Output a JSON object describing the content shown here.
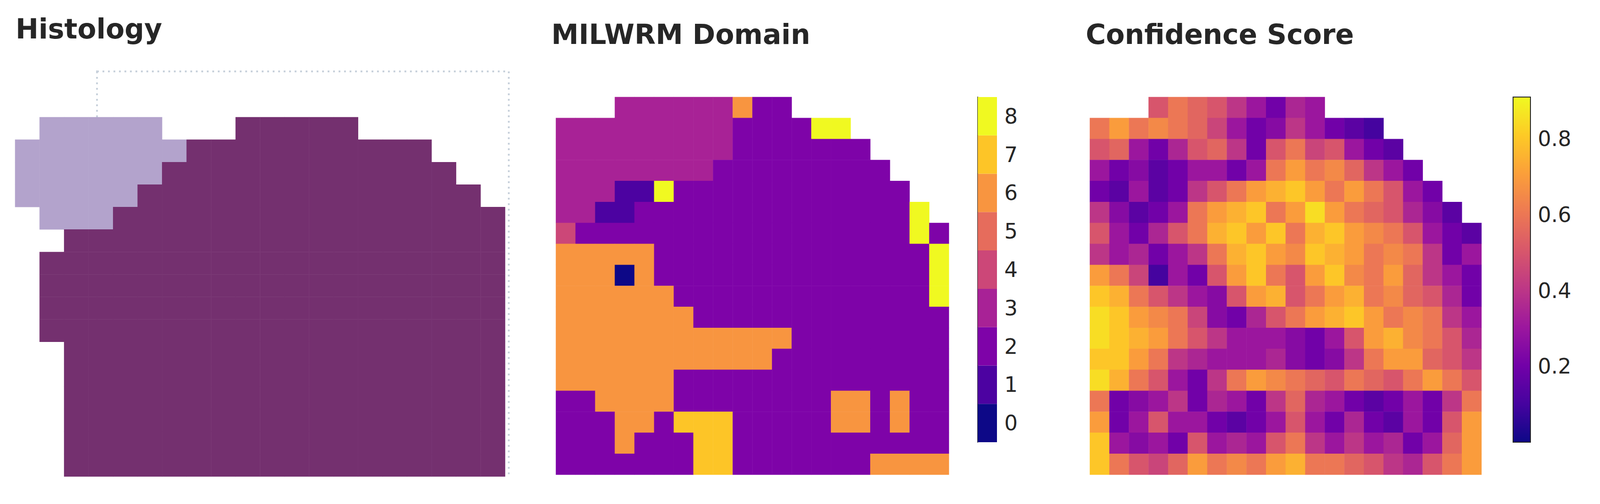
{
  "chart_data": [
    {
      "type": "image",
      "title": "Histology",
      "levels": [
        1,
        2
      ],
      "colors": [
        "#74306f",
        "#b3a3cc"
      ],
      "cells": [
        [
          null,
          2,
          2,
          2,
          2,
          2,
          null,
          null,
          null,
          1,
          1,
          1,
          1,
          1,
          null,
          null,
          null,
          null,
          null,
          null
        ],
        [
          2,
          2,
          2,
          2,
          2,
          2,
          2,
          1,
          1,
          1,
          1,
          1,
          1,
          1,
          1,
          1,
          1,
          null,
          null,
          null
        ],
        [
          2,
          2,
          2,
          2,
          2,
          2,
          1,
          1,
          1,
          1,
          1,
          1,
          1,
          1,
          1,
          1,
          1,
          1,
          null,
          null
        ],
        [
          2,
          2,
          2,
          2,
          2,
          1,
          1,
          1,
          1,
          1,
          1,
          1,
          1,
          1,
          1,
          1,
          1,
          1,
          1,
          null
        ],
        [
          null,
          2,
          2,
          2,
          1,
          1,
          1,
          1,
          1,
          1,
          1,
          1,
          1,
          1,
          1,
          1,
          1,
          1,
          1,
          1
        ],
        [
          null,
          null,
          1,
          1,
          1,
          1,
          1,
          1,
          1,
          1,
          1,
          1,
          1,
          1,
          1,
          1,
          1,
          1,
          1,
          1
        ],
        [
          null,
          1,
          1,
          1,
          1,
          1,
          1,
          1,
          1,
          1,
          1,
          1,
          1,
          1,
          1,
          1,
          1,
          1,
          1,
          1
        ],
        [
          null,
          1,
          1,
          1,
          1,
          1,
          1,
          1,
          1,
          1,
          1,
          1,
          1,
          1,
          1,
          1,
          1,
          1,
          1,
          1
        ],
        [
          null,
          1,
          1,
          1,
          1,
          1,
          1,
          1,
          1,
          1,
          1,
          1,
          1,
          1,
          1,
          1,
          1,
          1,
          1,
          1
        ],
        [
          null,
          1,
          1,
          1,
          1,
          1,
          1,
          1,
          1,
          1,
          1,
          1,
          1,
          1,
          1,
          1,
          1,
          1,
          1,
          1
        ],
        [
          null,
          null,
          1,
          1,
          1,
          1,
          1,
          1,
          1,
          1,
          1,
          1,
          1,
          1,
          1,
          1,
          1,
          1,
          1,
          1
        ],
        [
          null,
          null,
          1,
          1,
          1,
          1,
          1,
          1,
          1,
          1,
          1,
          1,
          1,
          1,
          1,
          1,
          1,
          1,
          1,
          1
        ],
        [
          null,
          null,
          1,
          1,
          1,
          1,
          1,
          1,
          1,
          1,
          1,
          1,
          1,
          1,
          1,
          1,
          1,
          1,
          1,
          1
        ],
        [
          null,
          null,
          1,
          1,
          1,
          1,
          1,
          1,
          1,
          1,
          1,
          1,
          1,
          1,
          1,
          1,
          1,
          1,
          1,
          1
        ],
        [
          null,
          null,
          1,
          1,
          1,
          1,
          1,
          1,
          1,
          1,
          1,
          1,
          1,
          1,
          1,
          1,
          1,
          1,
          1,
          1
        ],
        [
          null,
          null,
          1,
          1,
          1,
          1,
          1,
          1,
          1,
          1,
          1,
          1,
          1,
          1,
          1,
          1,
          1,
          1,
          1,
          1
        ]
      ]
    },
    {
      "type": "heatmap",
      "title": "MILWRM Domain",
      "colors": [
        "#0d0887",
        "#4c02a1",
        "#7e03a8",
        "#a82296",
        "#cc4778",
        "#e66c5c",
        "#f89540",
        "#fdc527",
        "#f0f921"
      ],
      "colorbar_range": [
        -0.5,
        8.5
      ],
      "colorbar_ticks": [
        0,
        1,
        2,
        3,
        4,
        5,
        6,
        7,
        8
      ],
      "cells": [
        [
          null,
          null,
          null,
          3,
          3,
          3,
          3,
          3,
          3,
          6,
          2,
          2,
          null,
          null,
          null,
          null,
          null,
          null,
          null,
          null
        ],
        [
          3,
          3,
          3,
          3,
          3,
          3,
          3,
          3,
          3,
          2,
          2,
          2,
          2,
          8,
          8,
          null,
          null,
          null,
          null,
          null
        ],
        [
          3,
          3,
          3,
          3,
          3,
          3,
          3,
          3,
          3,
          2,
          2,
          2,
          2,
          2,
          2,
          2,
          null,
          null,
          null,
          null
        ],
        [
          3,
          3,
          3,
          3,
          3,
          3,
          3,
          3,
          2,
          2,
          2,
          2,
          2,
          2,
          2,
          2,
          2,
          null,
          null,
          null
        ],
        [
          3,
          3,
          3,
          1,
          1,
          8,
          2,
          2,
          2,
          2,
          2,
          2,
          2,
          2,
          2,
          2,
          2,
          2,
          null,
          null
        ],
        [
          3,
          3,
          1,
          1,
          2,
          2,
          2,
          2,
          2,
          2,
          2,
          2,
          2,
          2,
          2,
          2,
          2,
          2,
          8,
          null
        ],
        [
          4,
          2,
          2,
          2,
          2,
          2,
          2,
          2,
          2,
          2,
          2,
          2,
          2,
          2,
          2,
          2,
          2,
          2,
          8,
          2
        ],
        [
          6,
          6,
          6,
          6,
          6,
          2,
          2,
          2,
          2,
          2,
          2,
          2,
          2,
          2,
          2,
          2,
          2,
          2,
          2,
          8
        ],
        [
          6,
          6,
          6,
          0,
          6,
          2,
          2,
          2,
          2,
          2,
          2,
          2,
          2,
          2,
          2,
          2,
          2,
          2,
          2,
          8
        ],
        [
          6,
          6,
          6,
          6,
          6,
          6,
          2,
          2,
          2,
          2,
          2,
          2,
          2,
          2,
          2,
          2,
          2,
          2,
          2,
          8
        ],
        [
          6,
          6,
          6,
          6,
          6,
          6,
          6,
          2,
          2,
          2,
          2,
          2,
          2,
          2,
          2,
          2,
          2,
          2,
          2,
          2
        ],
        [
          6,
          6,
          6,
          6,
          6,
          6,
          6,
          6,
          6,
          6,
          6,
          6,
          2,
          2,
          2,
          2,
          2,
          2,
          2,
          2
        ],
        [
          6,
          6,
          6,
          6,
          6,
          6,
          6,
          6,
          6,
          6,
          6,
          2,
          2,
          2,
          2,
          2,
          2,
          2,
          2,
          2
        ],
        [
          6,
          6,
          6,
          6,
          6,
          6,
          2,
          2,
          2,
          2,
          2,
          2,
          2,
          2,
          2,
          2,
          2,
          2,
          2,
          2
        ],
        [
          2,
          2,
          6,
          6,
          6,
          6,
          2,
          2,
          2,
          2,
          2,
          2,
          2,
          2,
          6,
          6,
          2,
          6,
          2,
          2
        ],
        [
          2,
          2,
          2,
          6,
          6,
          2,
          7,
          7,
          7,
          2,
          2,
          2,
          2,
          2,
          6,
          6,
          2,
          6,
          2,
          2
        ],
        [
          2,
          2,
          2,
          6,
          2,
          2,
          2,
          7,
          7,
          2,
          2,
          2,
          2,
          2,
          2,
          2,
          2,
          2,
          2,
          2
        ],
        [
          2,
          2,
          2,
          2,
          2,
          2,
          2,
          7,
          7,
          2,
          2,
          2,
          2,
          2,
          2,
          2,
          6,
          6,
          6,
          6
        ]
      ]
    },
    {
      "type": "heatmap",
      "title": "Confidence Score",
      "colors": [
        "#0d0887",
        "#46039f",
        "#7201a8",
        "#9c179e",
        "#bd3786",
        "#d8576b",
        "#ed7953",
        "#fb9f3a",
        "#fdca26",
        "#f0f921"
      ],
      "colorbar_range": [
        0,
        0.91
      ],
      "colorbar_ticks": [
        0.2,
        0.4,
        0.6,
        0.8
      ],
      "cells": [
        [
          null,
          null,
          null,
          0.5,
          0.6,
          0.55,
          0.5,
          0.4,
          0.3,
          0.2,
          0.35,
          0.3,
          null,
          null,
          null,
          null,
          null,
          null,
          null,
          null
        ],
        [
          0.6,
          0.7,
          0.6,
          0.65,
          0.6,
          0.55,
          0.45,
          0.3,
          0.2,
          0.25,
          0.4,
          0.3,
          0.2,
          0.15,
          0.1,
          null,
          null,
          null,
          null,
          null
        ],
        [
          0.5,
          0.55,
          0.3,
          0.2,
          0.35,
          0.5,
          0.55,
          0.4,
          0.2,
          0.5,
          0.6,
          0.45,
          0.5,
          0.3,
          0.2,
          0.15,
          null,
          null,
          null,
          null
        ],
        [
          0.3,
          0.2,
          0.25,
          0.15,
          0.2,
          0.3,
          0.3,
          0.2,
          0.3,
          0.6,
          0.7,
          0.6,
          0.65,
          0.55,
          0.4,
          0.3,
          0.2,
          null,
          null,
          null
        ],
        [
          0.2,
          0.15,
          0.3,
          0.15,
          0.2,
          0.4,
          0.5,
          0.6,
          0.7,
          0.75,
          0.8,
          0.7,
          0.6,
          0.7,
          0.6,
          0.5,
          0.3,
          0.2,
          null,
          null
        ],
        [
          0.4,
          0.25,
          0.15,
          0.2,
          0.3,
          0.6,
          0.7,
          0.75,
          0.8,
          0.6,
          0.7,
          0.85,
          0.7,
          0.6,
          0.55,
          0.5,
          0.35,
          0.25,
          0.15,
          null
        ],
        [
          0.5,
          0.3,
          0.2,
          0.35,
          0.5,
          0.6,
          0.75,
          0.8,
          0.7,
          0.8,
          0.6,
          0.75,
          0.8,
          0.7,
          0.65,
          0.6,
          0.5,
          0.3,
          0.2,
          0.15
        ],
        [
          0.4,
          0.3,
          0.35,
          0.2,
          0.3,
          0.4,
          0.6,
          0.75,
          0.8,
          0.7,
          0.65,
          0.8,
          0.75,
          0.7,
          0.6,
          0.65,
          0.6,
          0.4,
          0.2,
          0.3
        ],
        [
          0.7,
          0.6,
          0.45,
          0.1,
          0.3,
          0.2,
          0.5,
          0.7,
          0.8,
          0.6,
          0.5,
          0.7,
          0.8,
          0.65,
          0.6,
          0.7,
          0.55,
          0.4,
          0.3,
          0.2
        ],
        [
          0.8,
          0.75,
          0.6,
          0.5,
          0.4,
          0.3,
          0.25,
          0.5,
          0.7,
          0.75,
          0.5,
          0.6,
          0.7,
          0.75,
          0.6,
          0.65,
          0.55,
          0.5,
          0.35,
          0.2
        ],
        [
          0.85,
          0.8,
          0.7,
          0.65,
          0.6,
          0.45,
          0.25,
          0.2,
          0.35,
          0.5,
          0.6,
          0.7,
          0.75,
          0.8,
          0.7,
          0.6,
          0.65,
          0.6,
          0.4,
          0.3
        ],
        [
          0.85,
          0.8,
          0.75,
          0.7,
          0.6,
          0.5,
          0.4,
          0.3,
          0.3,
          0.3,
          0.25,
          0.2,
          0.3,
          0.5,
          0.7,
          0.75,
          0.65,
          0.6,
          0.5,
          0.35
        ],
        [
          0.8,
          0.8,
          0.7,
          0.6,
          0.4,
          0.35,
          0.3,
          0.3,
          0.3,
          0.35,
          0.25,
          0.2,
          0.25,
          0.4,
          0.6,
          0.7,
          0.7,
          0.55,
          0.5,
          0.4
        ],
        [
          0.85,
          0.75,
          0.6,
          0.5,
          0.3,
          0.2,
          0.4,
          0.6,
          0.7,
          0.65,
          0.6,
          0.55,
          0.5,
          0.6,
          0.55,
          0.5,
          0.6,
          0.7,
          0.6,
          0.5
        ],
        [
          0.6,
          0.2,
          0.25,
          0.3,
          0.4,
          0.2,
          0.35,
          0.3,
          0.2,
          0.4,
          0.55,
          0.35,
          0.3,
          0.2,
          0.15,
          0.2,
          0.3,
          0.2,
          0.4,
          0.6
        ],
        [
          0.7,
          0.2,
          0.3,
          0.5,
          0.3,
          0.3,
          0.2,
          0.15,
          0.2,
          0.3,
          0.5,
          0.3,
          0.2,
          0.35,
          0.2,
          0.15,
          0.3,
          0.2,
          0.5,
          0.7
        ],
        [
          0.8,
          0.3,
          0.25,
          0.3,
          0.2,
          0.5,
          0.3,
          0.35,
          0.3,
          0.5,
          0.6,
          0.4,
          0.3,
          0.4,
          0.3,
          0.35,
          0.2,
          0.3,
          0.55,
          0.7
        ],
        [
          0.8,
          0.6,
          0.5,
          0.45,
          0.55,
          0.7,
          0.6,
          0.65,
          0.6,
          0.7,
          0.75,
          0.6,
          0.6,
          0.55,
          0.5,
          0.4,
          0.35,
          0.5,
          0.6,
          0.7
        ]
      ]
    }
  ]
}
